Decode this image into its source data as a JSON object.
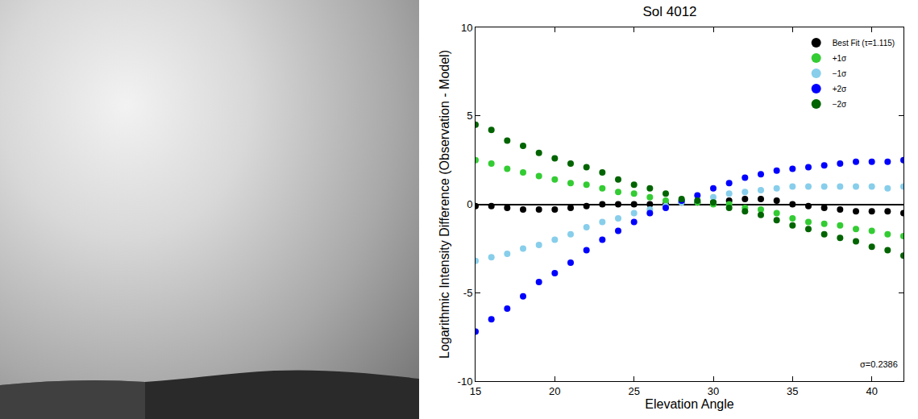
{
  "chart_data": {
    "type": "scatter",
    "title": "Sol 4012",
    "x_label": "Elevation Angle",
    "y_label": "Logarithmic Intensity Difference (Observation - Model)",
    "x": [
      15,
      16,
      17,
      18,
      19,
      20,
      21,
      22,
      23,
      24,
      25,
      26,
      27,
      28,
      29,
      30,
      31,
      32,
      33,
      34,
      35,
      36,
      37,
      38,
      39,
      40,
      41,
      42
    ],
    "series": [
      {
        "name": "Best Fit (τ=1.115)",
        "color": "#000000",
        "values": [
          -0.1,
          -0.1,
          -0.2,
          -0.3,
          -0.3,
          -0.3,
          -0.2,
          -0.1,
          0.0,
          0.0,
          0.0,
          0.0,
          0.0,
          0.1,
          0.1,
          0.1,
          0.2,
          0.3,
          0.3,
          0.2,
          0.0,
          -0.1,
          -0.2,
          -0.3,
          -0.4,
          -0.4,
          -0.4,
          -0.5
        ]
      },
      {
        "name": "+1σ",
        "color": "#33cc33",
        "values": [
          2.5,
          2.3,
          2.0,
          1.8,
          1.6,
          1.4,
          1.2,
          1.1,
          0.9,
          0.7,
          0.6,
          0.4,
          0.2,
          0.2,
          0.1,
          0.0,
          0.0,
          -0.2,
          -0.3,
          -0.5,
          -0.8,
          -1.0,
          -1.1,
          -1.2,
          -1.4,
          -1.5,
          -1.7,
          -1.8
        ]
      },
      {
        "name": "−1σ",
        "color": "#87ceeb",
        "values": [
          -3.2,
          -3.0,
          -2.8,
          -2.5,
          -2.3,
          -2.0,
          -1.7,
          -1.3,
          -1.0,
          -0.8,
          -0.5,
          -0.3,
          -0.1,
          0.1,
          0.2,
          0.4,
          0.6,
          0.7,
          0.8,
          0.9,
          1.0,
          1.0,
          1.0,
          1.0,
          1.0,
          1.0,
          0.9,
          1.0
        ]
      },
      {
        "name": "+2σ",
        "color": "#0000ff",
        "values": [
          -7.2,
          -6.5,
          -5.9,
          -5.2,
          -4.4,
          -3.9,
          -3.3,
          -2.6,
          -2.0,
          -1.5,
          -1.0,
          -0.5,
          -0.2,
          0.2,
          0.5,
          0.9,
          1.2,
          1.5,
          1.7,
          1.9,
          2.0,
          2.1,
          2.2,
          2.3,
          2.4,
          2.4,
          2.4,
          2.5
        ]
      },
      {
        "name": "−2σ",
        "color": "#006400",
        "values": [
          4.5,
          4.2,
          3.6,
          3.3,
          2.9,
          2.6,
          2.3,
          2.1,
          1.8,
          1.4,
          1.1,
          0.9,
          0.6,
          0.3,
          0.2,
          0.1,
          -0.2,
          -0.4,
          -0.6,
          -0.9,
          -1.2,
          -1.4,
          -1.7,
          -1.9,
          -2.1,
          -2.4,
          -2.6,
          -2.9
        ]
      }
    ],
    "xlim": [
      15,
      42
    ],
    "ylim": [
      -10,
      10
    ],
    "xticks": [
      15,
      20,
      25,
      30,
      35,
      40
    ],
    "yticks": [
      -10,
      -5,
      0,
      5,
      10
    ],
    "marker": "star",
    "grid": false,
    "legend": "top right",
    "annotations": [
      "σ=0.2386"
    ]
  }
}
